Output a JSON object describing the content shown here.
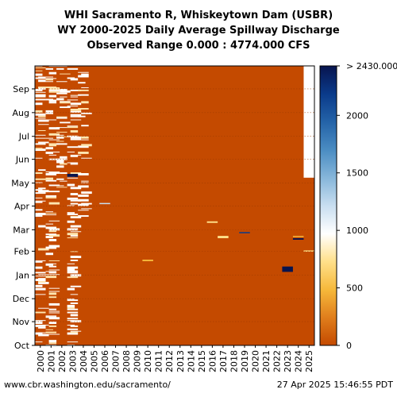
{
  "chart_data": {
    "type": "heatmap",
    "title": [
      "WHI Sacramento R, Whiskeytown Dam (USBR)",
      "WY 2000-2025 Daily Average Spillway Discharge",
      "Observed Range 0.000 : 4774.000 CFS"
    ],
    "x_categories": [
      "2000",
      "2001",
      "2002",
      "2003",
      "2004",
      "2005",
      "2006",
      "2007",
      "2008",
      "2009",
      "2010",
      "2011",
      "2012",
      "2013",
      "2014",
      "2015",
      "2016",
      "2017",
      "2018",
      "2019",
      "2020",
      "2021",
      "2022",
      "2023",
      "2024",
      "2025"
    ],
    "y_months": [
      "Oct",
      "Nov",
      "Dec",
      "Jan",
      "Feb",
      "Mar",
      "Apr",
      "May",
      "Jun",
      "Jul",
      "Aug",
      "Sep"
    ],
    "colorbar": {
      "ticks": [
        0,
        500,
        1000,
        1500,
        2000
      ],
      "top_label": "> 2430.000",
      "vmin": 0,
      "vmax": 2430,
      "colors": [
        "#c44a00",
        "#e07e1c",
        "#f6b93b",
        "#ffe08a",
        "#ffffff",
        "#c8def0",
        "#86b6da",
        "#4a8cc2",
        "#2463a8",
        "#0a3a8a",
        "#08144e"
      ]
    },
    "background_value": 0,
    "missing_data": [
      {
        "year": "2025",
        "from_day": 219,
        "to_day": 365
      }
    ],
    "events": [
      {
        "year": "2003",
        "day_start": 220,
        "day_end": 224,
        "value": 2430
      },
      {
        "year": "2006",
        "day_start": 185,
        "day_end": 186,
        "value": 1200
      },
      {
        "year": "2016",
        "day_start": 160,
        "day_end": 162,
        "value": 800
      },
      {
        "year": "2017",
        "day_start": 140,
        "day_end": 143,
        "value": 700
      },
      {
        "year": "2019",
        "day_start": 147,
        "day_end": 148,
        "value": 2200
      },
      {
        "year": "2023",
        "day_start": 96,
        "day_end": 103,
        "value": 2430
      },
      {
        "year": "2024",
        "day_start": 142,
        "day_end": 143,
        "value": 600
      },
      {
        "year": "2024",
        "day_start": 138,
        "day_end": 140,
        "value": 2430
      },
      {
        "year": "2010",
        "day_start": 110,
        "day_end": 112,
        "value": 600
      },
      {
        "year": "2025",
        "day_start": 123,
        "day_end": 124,
        "value": 800
      }
    ]
  },
  "footer": {
    "left": "www.cbr.washington.edu/sacramento/",
    "right": "27 Apr 2025 15:46:55 PDT"
  }
}
